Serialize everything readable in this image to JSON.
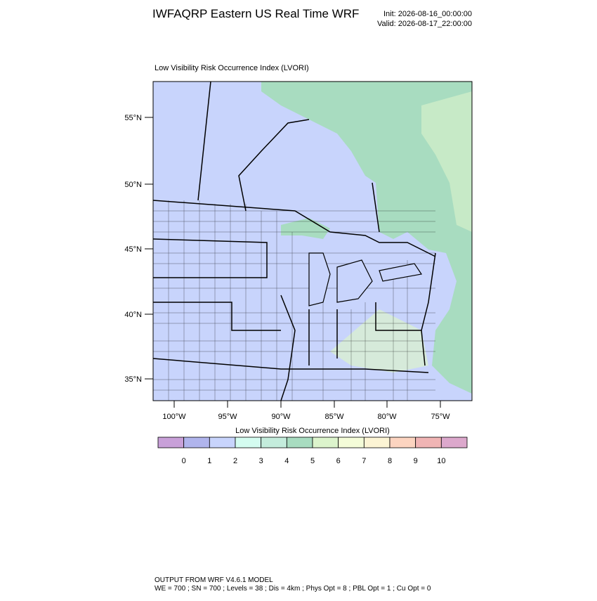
{
  "header": {
    "title": "IWFAQRP Eastern US Real Time WRF",
    "init": "Init: 2026-08-16_00:00:00",
    "valid": "Valid: 2026-08-17_22:00:00"
  },
  "map": {
    "title": "Low Visibility Risk Occurrence Index   (LVORI)",
    "lat_labels": [
      "55°N",
      "50°N",
      "45°N",
      "40°N",
      "35°N"
    ],
    "lon_labels": [
      "100°W",
      "95°W",
      "90°W",
      "85°W",
      "80°W",
      "75°W"
    ]
  },
  "colorbar": {
    "title": "Low Visibility Risk Occurrence Index  (LVORI)",
    "colors": [
      "#c8a0d8",
      "#b0b4ec",
      "#c8d4fc",
      "#d4fcf0",
      "#c4ecdc",
      "#a8dcc0",
      "#dcf4cc",
      "#f4fcd8",
      "#fcf4d4",
      "#fcd4c0",
      "#f0b4b4",
      "#dca8cc"
    ],
    "labels": [
      "0",
      "1",
      "2",
      "3",
      "4",
      "5",
      "6",
      "7",
      "8",
      "9",
      "10"
    ]
  },
  "footer": {
    "line1": "OUTPUT FROM WRF V4.6.1 MODEL",
    "line2": "WE = 700 ; SN = 700 ; Levels = 38 ; Dis = 4km ; Phys Opt = 8 ; PBL Opt = 1 ; Cu Opt = 0"
  }
}
